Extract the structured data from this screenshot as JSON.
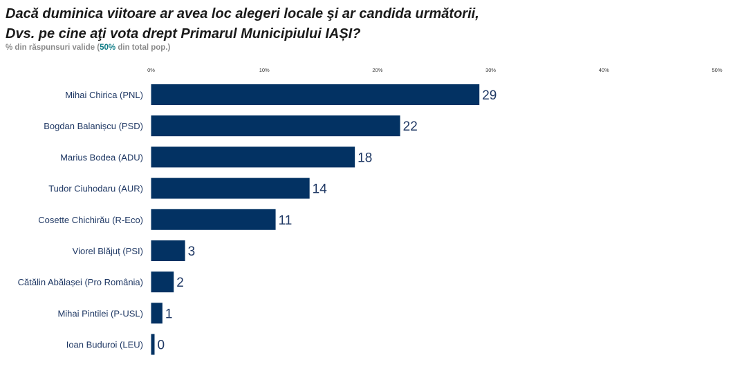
{
  "title_line1": "Dacă duminica viitoare ar avea loc alegeri locale şi ar candida următorii,",
  "title_line2": "Dvs. pe cine aţi vota drept Primarul Municipiului IAȘI?",
  "subtitle_prefix": "% din răspunsuri valide (",
  "subtitle_highlight": "50%",
  "subtitle_suffix": " din total pop.)",
  "colors": {
    "bar": "#033263",
    "label": "#1f3864",
    "highlight": "#0e7c86"
  },
  "chart_data": {
    "type": "bar",
    "orientation": "horizontal",
    "categories": [
      "Mihai Chirica (PNL)",
      "Bogdan Balanișcu (PSD)",
      "Marius Bodea (ADU)",
      "Tudor Ciuhodaru (AUR)",
      "Cosette Chichirău (R-Eco)",
      "Viorel Blăjuț (PSI)",
      "Cătălin Abălașei (Pro România)",
      "Mihai Pintilei (P-USL)",
      "Ioan Buduroi (LEU)"
    ],
    "values": [
      29,
      22,
      18,
      14,
      11,
      3,
      2,
      1,
      0
    ],
    "value_labels": [
      "29",
      "22",
      "18",
      "14",
      "11",
      "3",
      "2",
      "1",
      "0"
    ],
    "xlim": [
      0,
      50
    ],
    "x_ticks": [
      0,
      10,
      20,
      30,
      40,
      50
    ],
    "x_tick_labels": [
      "0%",
      "10%",
      "20%",
      "30%",
      "40%",
      "50%"
    ],
    "axis_position": "top",
    "grid": false,
    "legend": "none"
  }
}
